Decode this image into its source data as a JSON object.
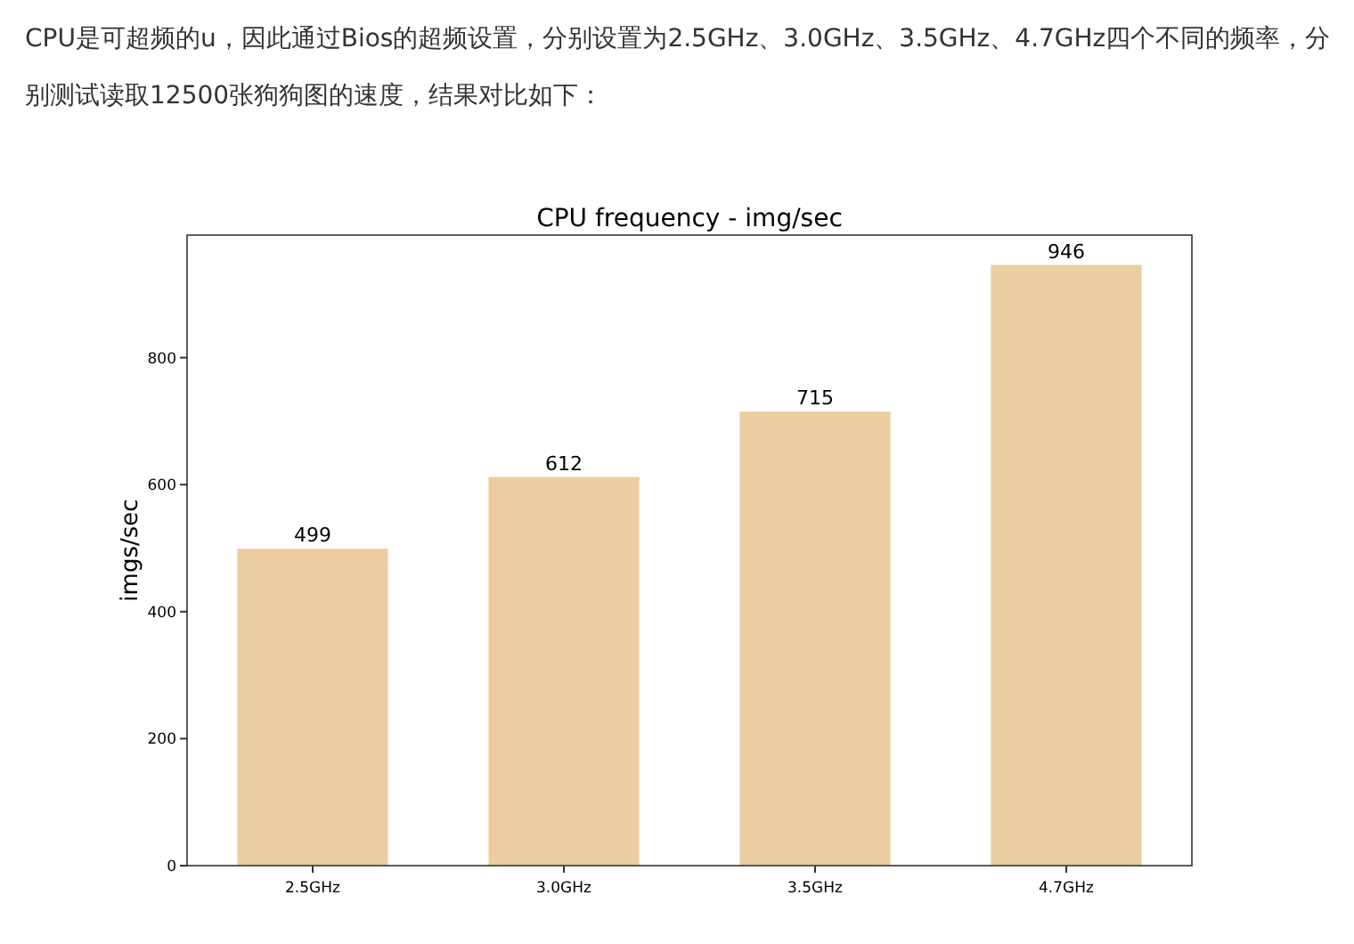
{
  "chart_data": {
    "type": "bar",
    "title": "CPU frequency - img/sec",
    "ylabel": "imgs/sec",
    "annotations": [
      "CPU是可超频的u，因此通过Bios的超频设置，分别设置为2.5GHz、3.0GHz、3.5GHz、4.7GHz四个不同的频率，分别测试读取12500张狗狗图的速度，结果对比如下："
    ],
    "categories": [
      "2.5GHz",
      "3.0GHz",
      "3.5GHz",
      "4.7GHz"
    ],
    "values": [
      499,
      612,
      715,
      946
    ],
    "color": "#ebcda0",
    "ylim": [
      0,
      993
    ],
    "yticks": [
      0,
      200,
      400,
      600,
      800
    ],
    "data_labels": true,
    "grid": false
  }
}
